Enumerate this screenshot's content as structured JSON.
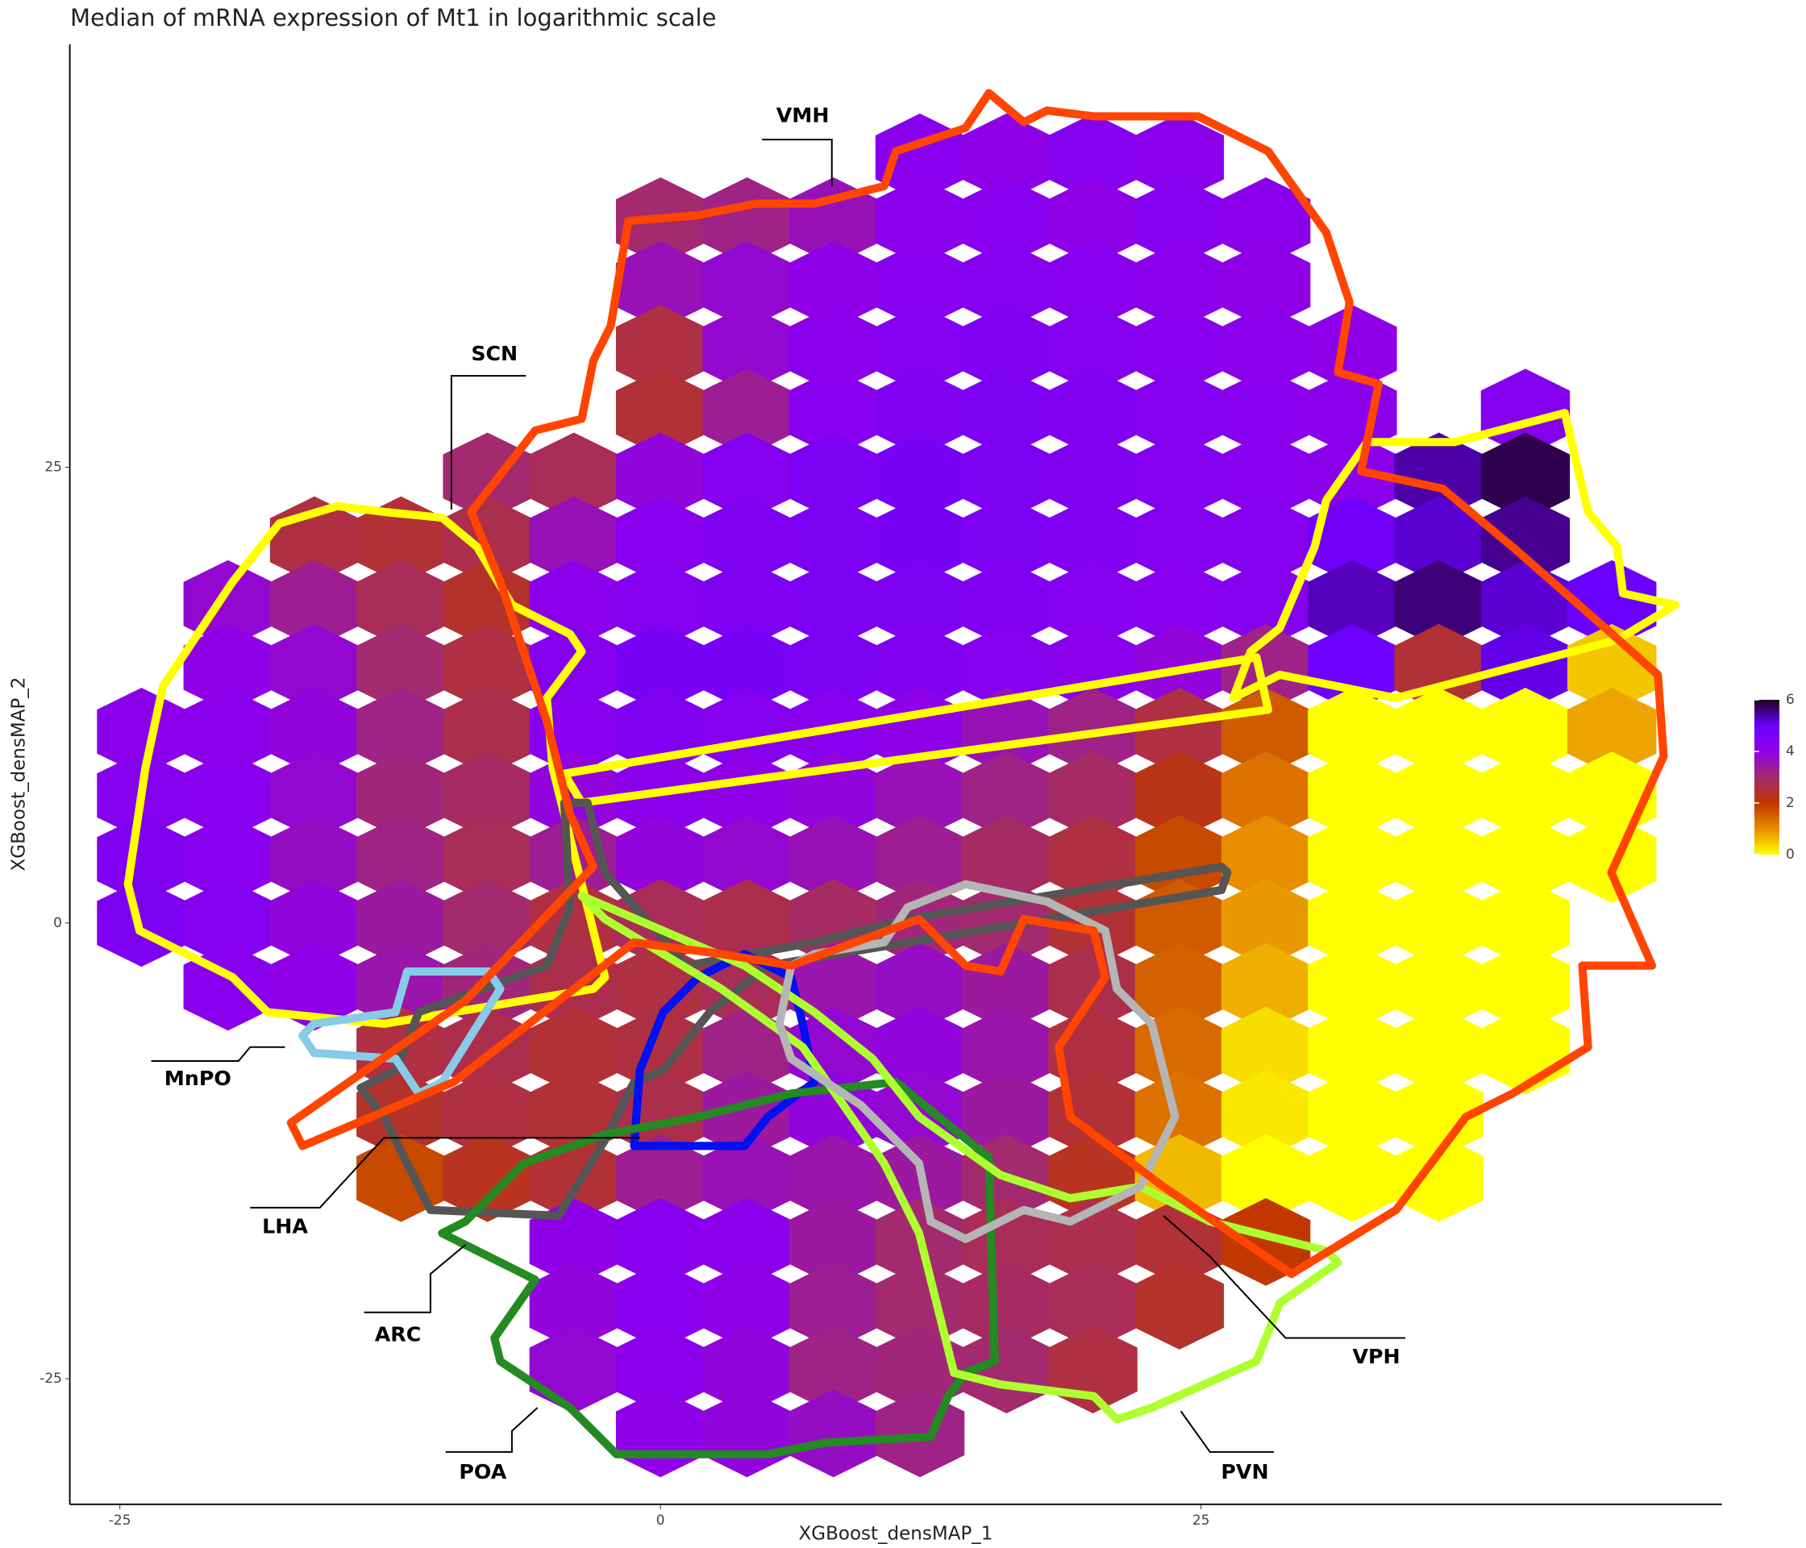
{
  "chart_data": {
    "type": "hexbin",
    "title": "Median of mRNA expression of Mt1 in logarithmic scale",
    "x_label": "XGBoost_densMAP_1",
    "y_label": "XGBoost_densMAP_2",
    "xlim": [
      -27.3,
      49.1
    ],
    "ylim": [
      -31.9,
      48.2
    ],
    "xticks": [
      -25,
      0,
      25
    ],
    "yticks": [
      -25,
      0,
      25
    ],
    "x": [
      -24,
      -20,
      -16,
      -12,
      -8,
      -4,
      0,
      4,
      8,
      12,
      16,
      20,
      24,
      28,
      32,
      36,
      40,
      44
    ],
    "y": [
      42,
      38.5,
      35,
      31.5,
      28,
      24.5,
      21,
      17.5,
      14,
      10.5,
      7,
      3.5,
      0,
      -3.5,
      -7,
      -10.5,
      -14,
      -17.5,
      -21,
      -24.5,
      -28
    ],
    "values": [
      [
        null,
        null,
        null,
        null,
        null,
        null,
        null,
        null,
        null,
        4.2,
        4.0,
        4.3,
        4.1,
        null,
        null,
        null,
        null,
        null
      ],
      [
        null,
        null,
        null,
        null,
        null,
        null,
        3.0,
        3.2,
        3.6,
        4.1,
        4.2,
        4.0,
        4.3,
        4.1,
        null,
        null,
        null,
        null
      ],
      [
        null,
        null,
        null,
        null,
        null,
        null,
        3.6,
        3.8,
        4.0,
        4.2,
        4.3,
        4.2,
        4.1,
        4.0,
        null,
        null,
        null,
        null
      ],
      [
        null,
        null,
        null,
        null,
        null,
        null,
        2.6,
        3.8,
        4.1,
        4.3,
        4.4,
        4.3,
        4.2,
        4.1,
        4.0,
        null,
        null,
        null
      ],
      [
        null,
        null,
        null,
        null,
        null,
        null,
        2.5,
        3.3,
        4.2,
        4.4,
        4.5,
        4.4,
        4.3,
        4.2,
        4.1,
        null,
        4.3,
        null
      ],
      [
        null,
        null,
        null,
        null,
        3.0,
        2.8,
        3.9,
        4.3,
        4.5,
        4.6,
        4.5,
        4.4,
        4.3,
        4.2,
        4.1,
        5.4,
        5.8,
        null
      ],
      [
        null,
        null,
        2.6,
        2.5,
        2.7,
        3.6,
        4.2,
        4.4,
        4.5,
        4.6,
        4.5,
        4.4,
        4.3,
        4.3,
        4.8,
        5.2,
        5.5,
        null
      ],
      [
        null,
        3.8,
        3.3,
        2.8,
        2.4,
        4.1,
        4.3,
        4.4,
        4.5,
        4.5,
        4.4,
        4.3,
        4.2,
        4.3,
        5.3,
        5.6,
        5.2,
        5.0
      ],
      [
        null,
        4.0,
        3.8,
        3.0,
        2.6,
        4.3,
        4.6,
        4.6,
        4.5,
        4.4,
        4.3,
        4.1,
        3.9,
        3.2,
        4.9,
        2.5,
        5.1,
        0.5
      ],
      [
        4.1,
        4.1,
        3.9,
        3.2,
        2.7,
        4.2,
        4.4,
        4.3,
        4.2,
        4.0,
        3.6,
        3.2,
        2.6,
        1.6,
        0,
        0,
        0,
        0.8
      ],
      [
        4.3,
        4.2,
        3.8,
        3.1,
        2.9,
        3.9,
        4.1,
        4.0,
        3.9,
        3.6,
        3.2,
        2.9,
        2.2,
        1.3,
        0,
        0,
        0,
        0
      ],
      [
        4.4,
        4.2,
        3.7,
        3.2,
        2.8,
        3.3,
        3.9,
        3.8,
        3.6,
        3.3,
        2.9,
        2.6,
        1.8,
        1.0,
        0,
        0,
        0,
        0
      ],
      [
        4.5,
        4.3,
        3.9,
        3.4,
        3.0,
        2.6,
        2.8,
        2.7,
        2.9,
        3.1,
        3.0,
        2.5,
        1.6,
        0.9,
        0,
        0,
        0,
        null
      ],
      [
        null,
        4.2,
        4.0,
        3.5,
        3.1,
        2.7,
        2.6,
        2.8,
        3.5,
        3.7,
        3.4,
        2.7,
        1.5,
        0.7,
        0,
        0,
        0,
        null
      ],
      [
        null,
        null,
        null,
        2.6,
        2.7,
        2.5,
        2.6,
        3.2,
        3.8,
        3.9,
        3.5,
        2.6,
        1.4,
        0.3,
        0,
        0,
        0,
        null
      ],
      [
        null,
        null,
        null,
        2.4,
        2.6,
        2.5,
        2.7,
        3.4,
        3.9,
        3.8,
        3.4,
        2.5,
        1.3,
        0.2,
        0,
        0,
        null,
        null
      ],
      [
        null,
        null,
        null,
        1.8,
        2.3,
        2.5,
        3.3,
        3.6,
        3.5,
        3.4,
        3.0,
        2.3,
        0.6,
        0,
        0,
        0,
        null,
        null
      ],
      [
        null,
        null,
        null,
        null,
        null,
        4.0,
        4.2,
        4.1,
        3.4,
        3.0,
        2.8,
        2.7,
        2.5,
        2.0,
        null,
        null,
        null,
        null
      ],
      [
        null,
        null,
        null,
        null,
        null,
        3.9,
        4.2,
        4.0,
        3.3,
        3.0,
        2.9,
        2.8,
        2.4,
        null,
        null,
        null,
        null,
        null
      ],
      [
        null,
        null,
        null,
        null,
        null,
        3.8,
        4.1,
        3.9,
        3.2,
        3.1,
        3.0,
        2.6,
        null,
        null,
        null,
        null,
        null,
        null
      ],
      [
        null,
        null,
        null,
        null,
        null,
        null,
        4.0,
        3.9,
        3.7,
        3.2,
        null,
        null,
        null,
        null,
        null,
        null,
        null,
        null
      ]
    ],
    "colorbar": {
      "lim": [
        0,
        6
      ],
      "ticks": [
        0,
        2,
        4,
        6
      ],
      "colors": [
        "#ffff00",
        "#e88c00",
        "#c03800",
        "#a32a6e",
        "#8f00e8",
        "#6a00ff",
        "#200020"
      ]
    },
    "annotations": [
      "VMH",
      "SCN",
      "MnPO",
      "LHA",
      "ARC",
      "POA",
      "PVN",
      "VPH"
    ]
  }
}
